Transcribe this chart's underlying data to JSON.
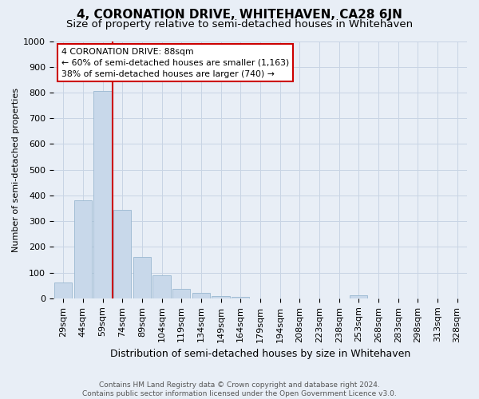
{
  "title": "4, CORONATION DRIVE, WHITEHAVEN, CA28 6JN",
  "subtitle": "Size of property relative to semi-detached houses in Whitehaven",
  "xlabel": "Distribution of semi-detached houses by size in Whitehaven",
  "ylabel": "Number of semi-detached properties",
  "footer_line1": "Contains HM Land Registry data © Crown copyright and database right 2024.",
  "footer_line2": "Contains public sector information licensed under the Open Government Licence v3.0.",
  "categories": [
    "29sqm",
    "44sqm",
    "59sqm",
    "74sqm",
    "89sqm",
    "104sqm",
    "119sqm",
    "134sqm",
    "149sqm",
    "164sqm",
    "179sqm",
    "194sqm",
    "208sqm",
    "223sqm",
    "238sqm",
    "253sqm",
    "268sqm",
    "283sqm",
    "298sqm",
    "313sqm",
    "328sqm"
  ],
  "values": [
    60,
    380,
    805,
    345,
    160,
    88,
    38,
    20,
    10,
    5,
    0,
    0,
    0,
    0,
    0,
    12,
    0,
    0,
    0,
    0,
    0
  ],
  "bar_color": "#c8d8ea",
  "bar_edge_color": "#9ab8d0",
  "property_line_x": 2.5,
  "annotation_line1": "4 CORONATION DRIVE: 88sqm",
  "annotation_line2": "← 60% of semi-detached houses are smaller (1,163)",
  "annotation_line3": "38% of semi-detached houses are larger (740) →",
  "annotation_box_facecolor": "#ffffff",
  "annotation_box_edgecolor": "#cc0000",
  "property_line_color": "#cc0000",
  "ylim": [
    0,
    1000
  ],
  "yticks": [
    0,
    100,
    200,
    300,
    400,
    500,
    600,
    700,
    800,
    900,
    1000
  ],
  "grid_color": "#c8d4e4",
  "background_color": "#e8eef6",
  "plot_bg_color": "#e8eef6",
  "title_fontsize": 11,
  "subtitle_fontsize": 9.5,
  "ylabel_fontsize": 8,
  "xlabel_fontsize": 9,
  "tick_fontsize": 8,
  "annotation_fontsize": 7.8,
  "footer_fontsize": 6.5
}
